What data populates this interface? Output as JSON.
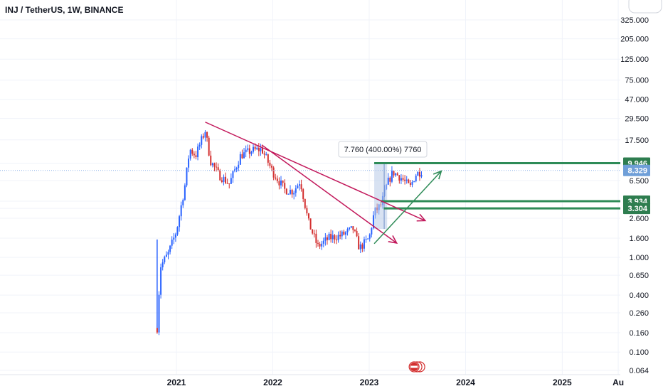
{
  "legend": {
    "title": "INJ / TetherUS, 1W, BINANCE"
  },
  "colors": {
    "up": "#2962ff",
    "down": "#d32f2f",
    "trendline": "#c2185b",
    "green_line": "#2e8b57",
    "green_tag": "#2e7d4f",
    "current_tag": "#6f9fd8",
    "range_box": "#b8cbe8",
    "gridline": "#f0f3fa",
    "axis_text": "#131722"
  },
  "chart_data": {
    "type": "candlestick",
    "title": "INJ / TetherUS, 1W, BINANCE",
    "y_scale": "log",
    "y_ticks": [
      0.064,
      0.1,
      0.16,
      0.26,
      0.4,
      0.65,
      1.0,
      1.6,
      2.6,
      3.304,
      3.934,
      6.5,
      9.946,
      17.5,
      29.5,
      47.0,
      75.0,
      125.0,
      205.0,
      325.0
    ],
    "y_tick_labels": [
      "0.064",
      "0.100",
      "0.160",
      "0.260",
      "0.400",
      "0.650",
      "1.000",
      "1.600",
      "2.600",
      "3.304",
      "3.934",
      "6.500",
      "9.946",
      "17.500",
      "29.500",
      "47.000",
      "75.000",
      "125.000",
      "205.000",
      "325.000"
    ],
    "x_ticks": [
      "2021",
      "2022",
      "2023",
      "2024",
      "2025",
      "Au"
    ],
    "current_price": {
      "label": "8.329",
      "value": 8.329
    },
    "horizontal_levels": [
      {
        "value": 9.946,
        "label": "9.946"
      },
      {
        "value": 3.934,
        "label": "3.934"
      },
      {
        "value": 3.304,
        "label": "3.304"
      }
    ],
    "measure_callout": {
      "text": "7.760 (400.00%) 7760"
    },
    "price_path": [
      {
        "t": "2020-10-20",
        "close": 0.18
      },
      {
        "t": "2020-11-01",
        "close": 0.8
      },
      {
        "t": "2020-12-01",
        "close": 1.1
      },
      {
        "t": "2021-01-01",
        "close": 1.9
      },
      {
        "t": "2021-02-01",
        "close": 5.5
      },
      {
        "t": "2021-02-20",
        "close": 14.0
      },
      {
        "t": "2021-03-15",
        "close": 12.0
      },
      {
        "t": "2021-04-20",
        "close": 22.0
      },
      {
        "t": "2021-05-10",
        "close": 10.5
      },
      {
        "t": "2021-06-10",
        "close": 7.5
      },
      {
        "t": "2021-07-20",
        "close": 6.0
      },
      {
        "t": "2021-09-01",
        "close": 12.0
      },
      {
        "t": "2021-10-15",
        "close": 13.5
      },
      {
        "t": "2021-11-20",
        "close": 14.0
      },
      {
        "t": "2022-01-01",
        "close": 8.0
      },
      {
        "t": "2022-02-15",
        "close": 5.2
      },
      {
        "t": "2022-03-20",
        "close": 5.0
      },
      {
        "t": "2022-04-15",
        "close": 6.5
      },
      {
        "t": "2022-05-15",
        "close": 2.4
      },
      {
        "t": "2022-06-20",
        "close": 1.3
      },
      {
        "t": "2022-08-01",
        "close": 1.6
      },
      {
        "t": "2022-09-15",
        "close": 1.7
      },
      {
        "t": "2022-11-01",
        "close": 2.0
      },
      {
        "t": "2022-11-25",
        "close": 1.25
      },
      {
        "t": "2023-01-01",
        "close": 1.6
      },
      {
        "t": "2023-01-20",
        "close": 3.0
      },
      {
        "t": "2023-02-15",
        "close": 3.6
      },
      {
        "t": "2023-03-10",
        "close": 6.0
      },
      {
        "t": "2023-04-01",
        "close": 8.0
      },
      {
        "t": "2023-05-01",
        "close": 7.0
      },
      {
        "t": "2023-06-05",
        "close": 5.5
      },
      {
        "t": "2023-06-25",
        "close": 7.5
      },
      {
        "t": "2023-07-20",
        "close": 8.3
      }
    ]
  }
}
